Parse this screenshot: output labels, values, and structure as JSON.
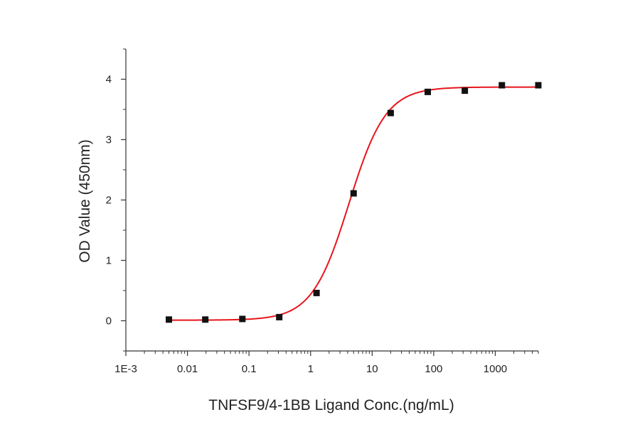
{
  "chart_data": {
    "type": "scatter",
    "xlabel": "TNFSF9/4-1BB Ligand Conc.(ng/mL)",
    "ylabel": "OD Value (450nm)",
    "x_scale": "log",
    "xlim": [
      0.001,
      5000
    ],
    "ylim": [
      -0.5,
      4.5
    ],
    "x_ticks": [
      {
        "value": 0.001,
        "label": "1E-3"
      },
      {
        "value": 0.01,
        "label": "0.01"
      },
      {
        "value": 0.1,
        "label": "0.1"
      },
      {
        "value": 1,
        "label": "1"
      },
      {
        "value": 10,
        "label": "10"
      },
      {
        "value": 100,
        "label": "100"
      },
      {
        "value": 1000,
        "label": "1000"
      }
    ],
    "y_ticks": [
      {
        "value": 0,
        "label": "0"
      },
      {
        "value": 1,
        "label": "1"
      },
      {
        "value": 2,
        "label": "2"
      },
      {
        "value": 3,
        "label": "3"
      },
      {
        "value": 4,
        "label": "4"
      }
    ],
    "points": [
      {
        "x": 0.005,
        "y": 0.02
      },
      {
        "x": 0.0195,
        "y": 0.02
      },
      {
        "x": 0.078,
        "y": 0.03
      },
      {
        "x": 0.31,
        "y": 0.06
      },
      {
        "x": 1.25,
        "y": 0.46
      },
      {
        "x": 5,
        "y": 2.11
      },
      {
        "x": 20,
        "y": 3.44
      },
      {
        "x": 80,
        "y": 3.79
      },
      {
        "x": 320,
        "y": 3.81
      },
      {
        "x": 1280,
        "y": 3.9
      },
      {
        "x": 5000,
        "y": 3.9
      }
    ],
    "fit": {
      "model": "4PL",
      "bottom": 0.01,
      "top": 3.87,
      "ec50": 4.2,
      "hill": 1.45
    },
    "marker_color": "#111111",
    "fit_color": "#e8141b",
    "axis_color": "#333333",
    "grid": false,
    "legend": "none"
  }
}
